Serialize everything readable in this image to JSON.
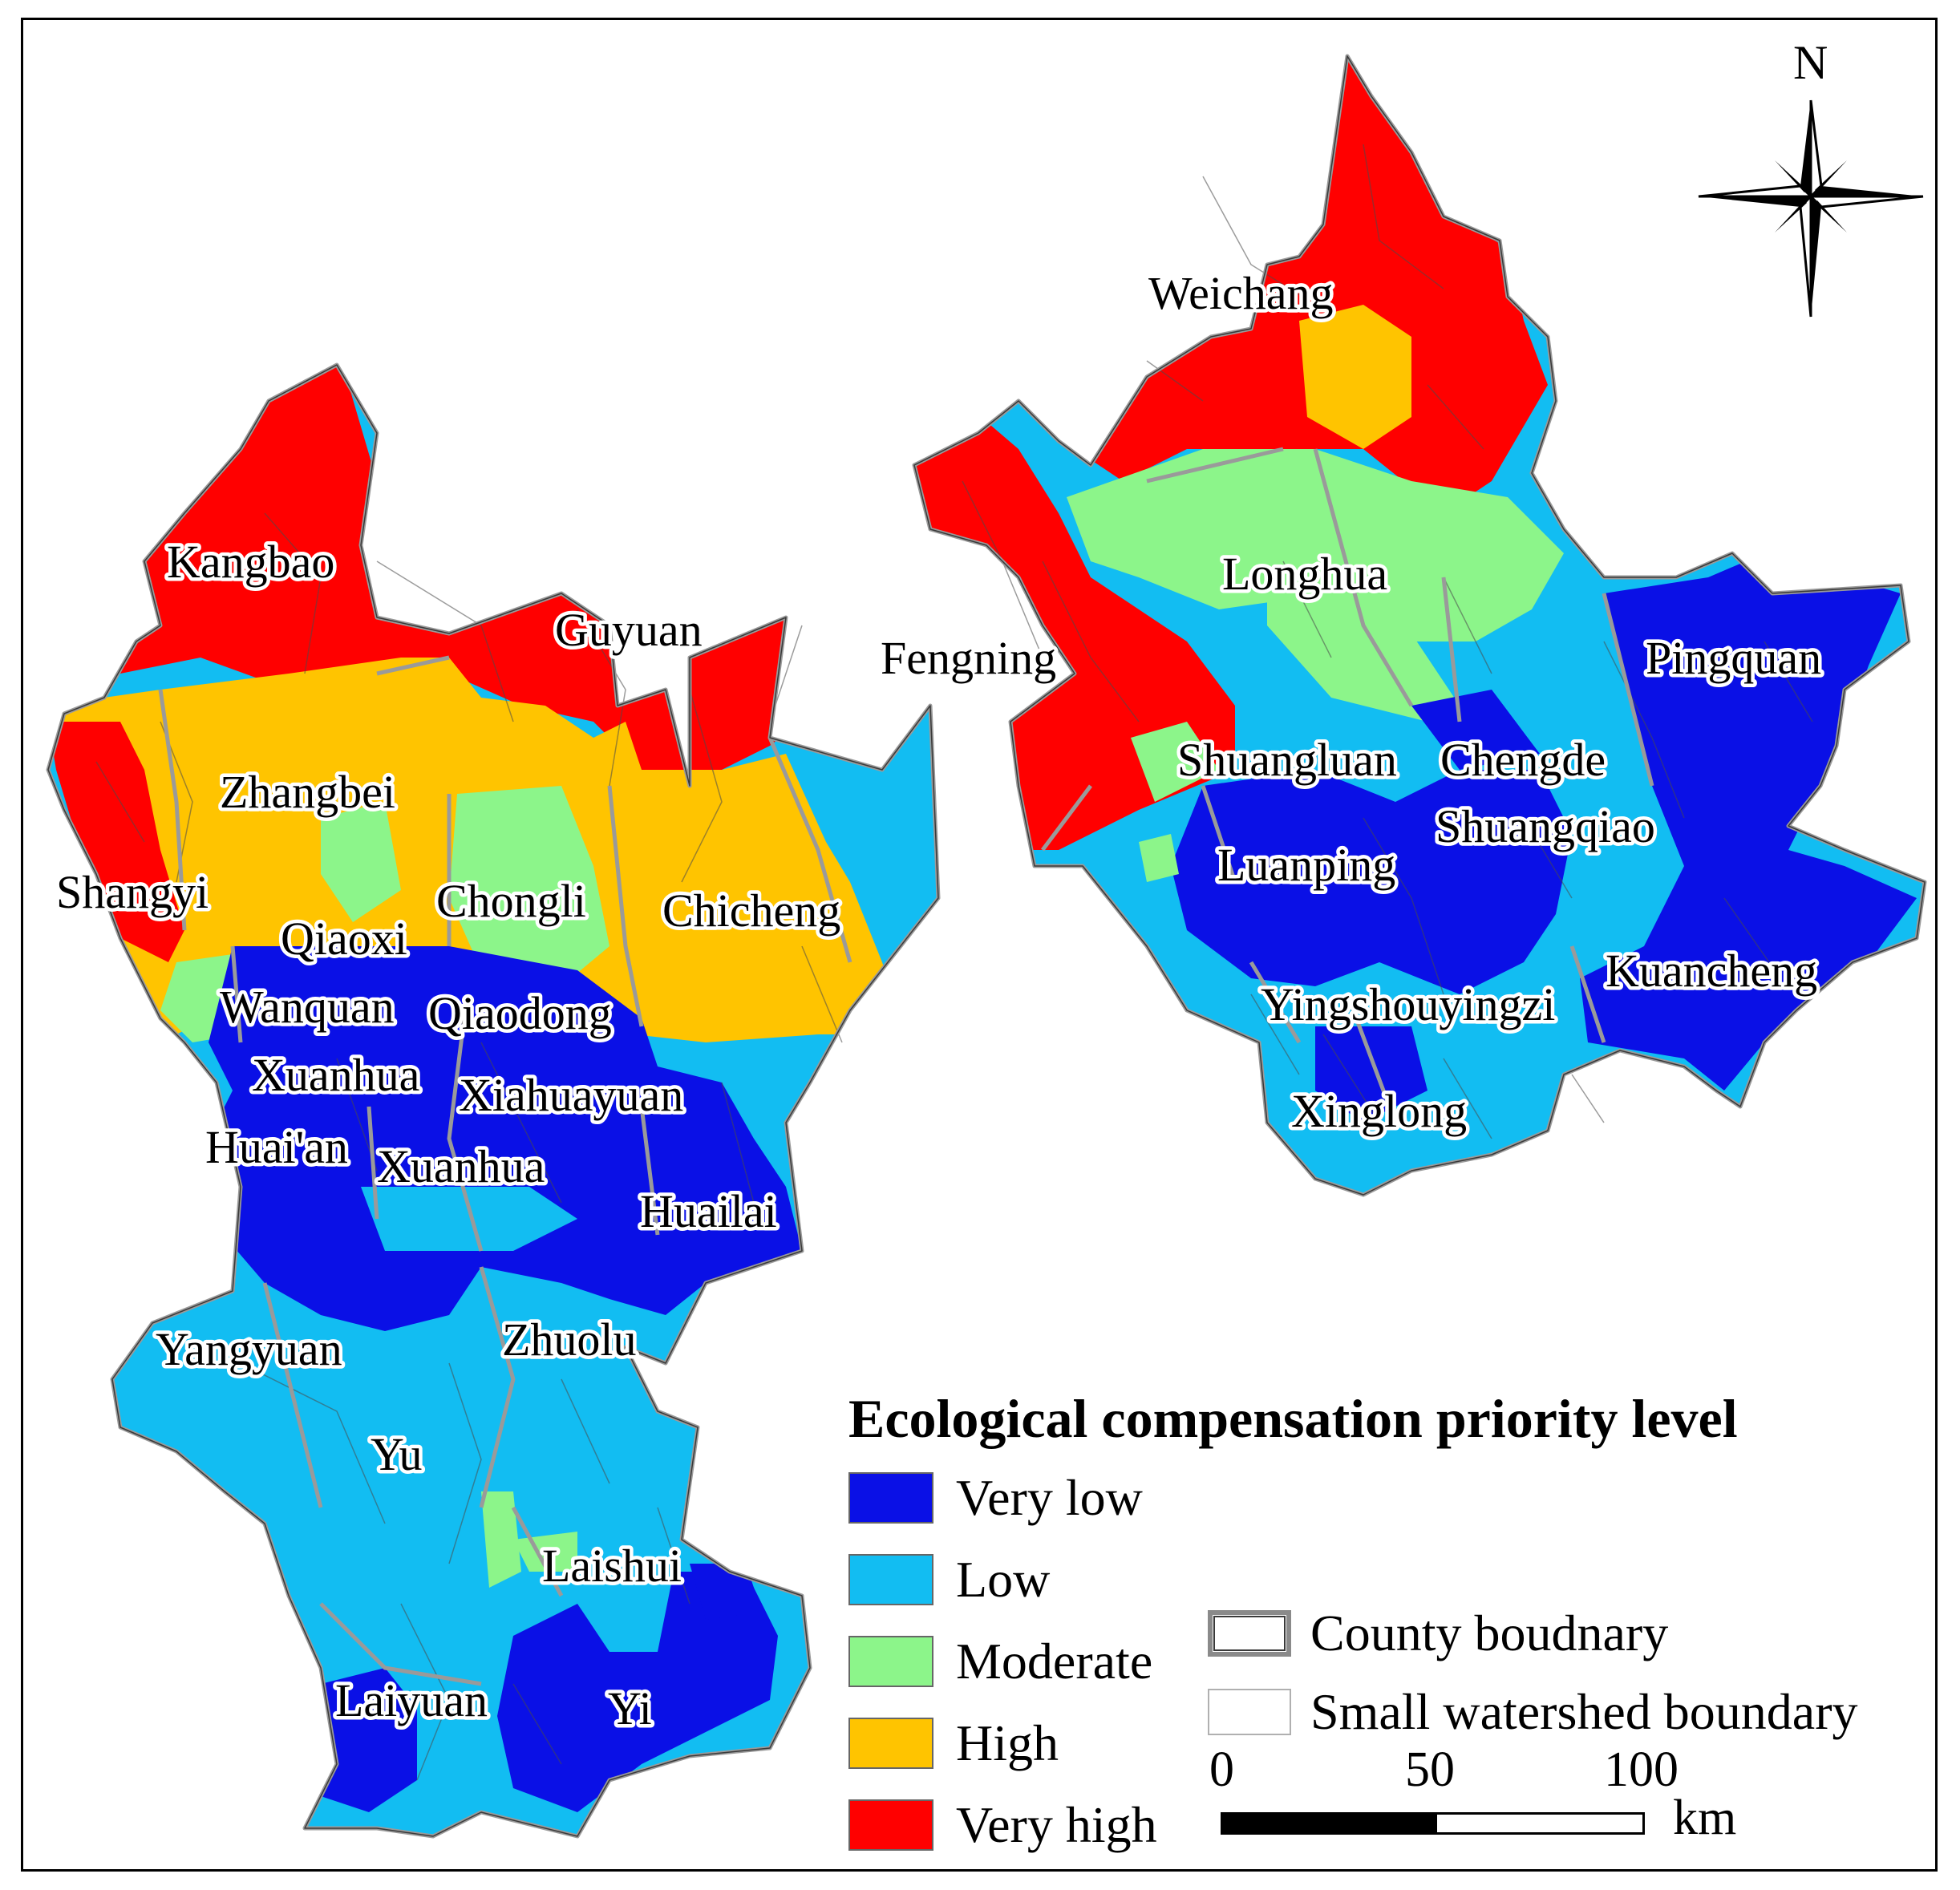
{
  "colors": {
    "very_low": "#0A10E6",
    "low": "#12BDF2",
    "moderate": "#8CF58A",
    "high": "#FFC400",
    "very_high": "#FF0000",
    "county_boundary": "#8a8a8a",
    "watershed_boundary": "#4b4b4b"
  },
  "counties": [
    {
      "name": "Weichang",
      "level": "very_high"
    },
    {
      "name": "Longhua",
      "level": "moderate"
    },
    {
      "name": "Pingquan",
      "level": "very_low"
    },
    {
      "name": "Kangbao",
      "level": "very_high"
    },
    {
      "name": "Guyuan",
      "level": "very_high"
    },
    {
      "name": "Fengning",
      "level": "very_high"
    },
    {
      "name": "Zhangbei",
      "level": "high"
    },
    {
      "name": "Shangyi",
      "level": "very_high"
    },
    {
      "name": "Chongli",
      "level": "moderate"
    },
    {
      "name": "Chicheng",
      "level": "high"
    },
    {
      "name": "Shuangluan",
      "level": "low"
    },
    {
      "name": "Chengde",
      "level": "low"
    },
    {
      "name": "Shuangqiao",
      "level": "very_low"
    },
    {
      "name": "Luanping",
      "level": "very_low"
    },
    {
      "name": "Qiaoxi",
      "level": "very_low"
    },
    {
      "name": "Wanquan",
      "level": "very_low"
    },
    {
      "name": "Qiaodong",
      "level": "very_low"
    },
    {
      "name": "Kuancheng",
      "level": "very_low"
    },
    {
      "name": "Yingshouyingzi",
      "level": "low"
    },
    {
      "name": "Xuanhua",
      "level": "very_low"
    },
    {
      "name": "Xiahuayuan",
      "level": "very_low"
    },
    {
      "name": "Xinglong",
      "level": "low"
    },
    {
      "name": "Huai'an",
      "level": "very_low"
    },
    {
      "name": "Xuanhua",
      "level": "low"
    },
    {
      "name": "Huailai",
      "level": "very_low"
    },
    {
      "name": "Yangyuan",
      "level": "low"
    },
    {
      "name": "Zhuolu",
      "level": "low"
    },
    {
      "name": "Yu",
      "level": "low"
    },
    {
      "name": "Laishui",
      "level": "low"
    },
    {
      "name": "Laiyuan",
      "level": "low"
    },
    {
      "name": "Yi",
      "level": "very_low"
    }
  ],
  "legend": {
    "title": "Ecological compensation priority level",
    "items": [
      {
        "label": "Very low",
        "color": "#0A10E6"
      },
      {
        "label": "Low",
        "color": "#12BDF2"
      },
      {
        "label": "Moderate",
        "color": "#8CF58A"
      },
      {
        "label": "High",
        "color": "#FFC400"
      },
      {
        "label": "Very high",
        "color": "#FF0000"
      }
    ],
    "county_boundary": "County boudnary",
    "watershed_boundary": "Small watershed boundary"
  },
  "scale": {
    "ticks": [
      "0",
      "50",
      "100"
    ],
    "unit": "km"
  },
  "north": "N"
}
